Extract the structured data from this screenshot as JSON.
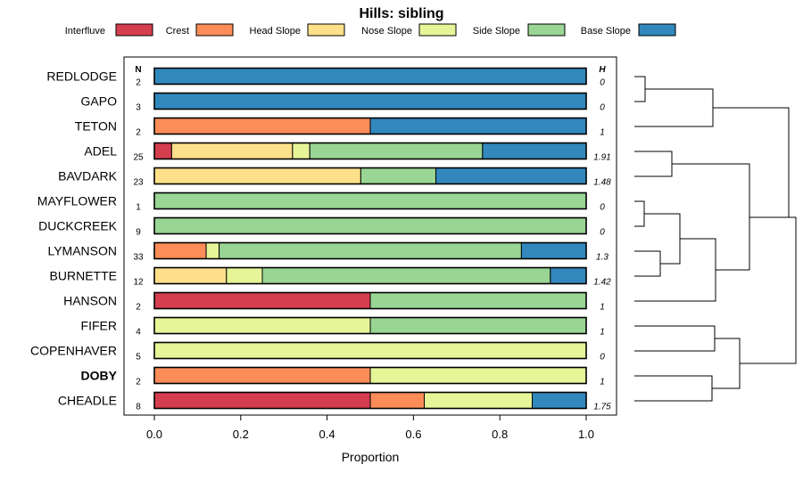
{
  "chart_data": {
    "type": "bar",
    "orientation": "horizontal",
    "stacked": true,
    "title": "Hills: sibling",
    "xlabel": "Proportion",
    "xlim": [
      0,
      1
    ],
    "xticks": [
      "0.0",
      "0.2",
      "0.4",
      "0.6",
      "0.8",
      "1.0"
    ],
    "xtick_values": [
      0,
      0.2,
      0.4,
      0.6,
      0.8,
      1.0
    ],
    "n_header": "N",
    "h_header": "H",
    "highlight": "DOBY",
    "legend": [
      {
        "name": "Interfluve",
        "color": "#D53E4F"
      },
      {
        "name": "Crest",
        "color": "#FC8D59"
      },
      {
        "name": "Head Slope",
        "color": "#FEE08B"
      },
      {
        "name": "Nose Slope",
        "color": "#E6F598"
      },
      {
        "name": "Side Slope",
        "color": "#99D594"
      },
      {
        "name": "Base Slope",
        "color": "#3288BD"
      }
    ],
    "categories": [
      "REDLODGE",
      "GAPO",
      "TETON",
      "ADEL",
      "BAVDARK",
      "MAYFLOWER",
      "DUCKCREEK",
      "LYMANSON",
      "BURNETTE",
      "HANSON",
      "FIFER",
      "COPENHAVER",
      "DOBY",
      "CHEADLE"
    ],
    "n": [
      "2",
      "3",
      "2",
      "25",
      "23",
      "1",
      "9",
      "33",
      "12",
      "2",
      "4",
      "5",
      "2",
      "8"
    ],
    "h": [
      "0",
      "0",
      "1",
      "1.91",
      "1.48",
      "0",
      "0",
      "1.3",
      "1.42",
      "1",
      "1",
      "0",
      "1",
      "1.75"
    ],
    "series": [
      {
        "name": "Interfluve",
        "values": [
          0,
          0,
          0,
          0.04,
          0,
          0,
          0,
          0,
          0,
          0.5,
          0,
          0,
          0,
          0.5
        ]
      },
      {
        "name": "Crest",
        "values": [
          0,
          0,
          0.5,
          0,
          0,
          0,
          0,
          0.12,
          0,
          0,
          0,
          0,
          0.5,
          0.125
        ]
      },
      {
        "name": "Head Slope",
        "values": [
          0,
          0,
          0,
          0.28,
          0.478,
          0,
          0,
          0,
          0.167,
          0,
          0,
          0,
          0,
          0
        ]
      },
      {
        "name": "Nose Slope",
        "values": [
          0,
          0,
          0,
          0.04,
          0,
          0,
          0,
          0.03,
          0.083,
          0,
          0.5,
          1,
          0.5,
          0.25
        ]
      },
      {
        "name": "Side Slope",
        "values": [
          0,
          0,
          0,
          0.4,
          0.174,
          1,
          1,
          0.7,
          0.667,
          0.5,
          0.5,
          0,
          0,
          0
        ]
      },
      {
        "name": "Base Slope",
        "values": [
          1,
          1,
          0.5,
          0.24,
          0.348,
          0,
          0,
          0.15,
          0.083,
          0,
          0,
          0,
          0,
          0.125
        ]
      }
    ]
  }
}
